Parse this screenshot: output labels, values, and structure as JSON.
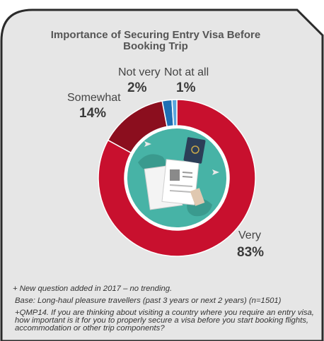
{
  "chart_data": {
    "type": "pie",
    "title": "Importance of Securing Entry Visa Before Booking Trip",
    "slices": [
      {
        "label": "Very",
        "value": 83,
        "value_label": "83%",
        "color": "#c8102e"
      },
      {
        "label": "Somewhat",
        "value": 14,
        "value_label": "14%",
        "color": "#8b0e1e"
      },
      {
        "label": "Not very",
        "value": 2,
        "value_label": "2%",
        "color": "#1f6fb4"
      },
      {
        "label": "Not at all",
        "value": 1,
        "value_label": "1%",
        "color": "#5aa6dd"
      }
    ]
  },
  "notes": {
    "line1": "+ New question added in 2017 – no trending.",
    "line2": "Base: Long-haul pleasure travellers (past 3 years or next 2 years) (n=1501)",
    "line3": "+QMP14. If you are thinking about visiting a country where you require an entry visa, how important is it for you to properly secure a visa before you start booking flights, accommodation or other trip components?"
  },
  "colors": {
    "panel_bg": "#e6e6e6",
    "panel_border": "#2b2b2b",
    "center_circle": "#47b3a6"
  }
}
